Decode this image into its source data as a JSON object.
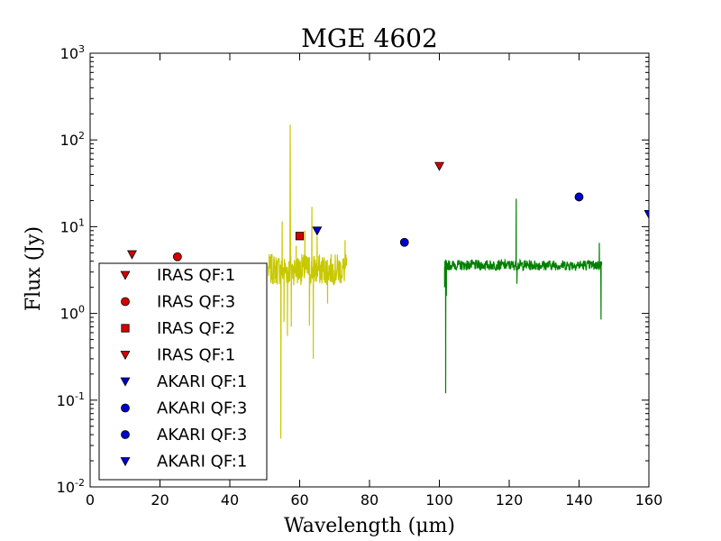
{
  "chart_data": {
    "type": "scatter",
    "title": "MGE 4602",
    "xlabel": "Wavelength (μm)",
    "ylabel": "Flux (Jy)",
    "xlim": [
      0,
      160
    ],
    "ylim": [
      0.01,
      1000
    ],
    "yscale": "log",
    "x_ticks": [
      "0",
      "20",
      "40",
      "60",
      "80",
      "100",
      "120",
      "140",
      "160"
    ],
    "y_ticks": [
      {
        "base": "10",
        "exp": "-2",
        "value": 0.01
      },
      {
        "base": "10",
        "exp": "-1",
        "value": 0.1
      },
      {
        "base": "10",
        "exp": "0",
        "value": 1
      },
      {
        "base": "10",
        "exp": "1",
        "value": 10
      },
      {
        "base": "10",
        "exp": "2",
        "value": 100
      },
      {
        "base": "10",
        "exp": "3",
        "value": 1000
      }
    ],
    "legend_position": "lower-left",
    "points": [
      {
        "label": "IRAS QF:1",
        "x": 12,
        "y": 4.8,
        "marker": "triangle-down",
        "color": "#d40000"
      },
      {
        "label": "IRAS QF:3",
        "x": 25,
        "y": 4.5,
        "marker": "circle",
        "color": "#d40000"
      },
      {
        "label": "IRAS QF:2",
        "x": 60,
        "y": 7.8,
        "marker": "square",
        "color": "#d40000"
      },
      {
        "label": "IRAS QF:1",
        "x": 100,
        "y": 50,
        "marker": "triangle-down",
        "color": "#d40000"
      },
      {
        "label": "AKARI QF:1",
        "x": 65,
        "y": 9,
        "marker": "triangle-down",
        "color": "#0000cc"
      },
      {
        "label": "AKARI QF:3",
        "x": 90,
        "y": 6.6,
        "marker": "circle",
        "color": "#0000cc"
      },
      {
        "label": "AKARI QF:3",
        "x": 140,
        "y": 22,
        "marker": "circle",
        "color": "#0000cc"
      },
      {
        "label": "AKARI QF:1",
        "x": 160,
        "y": 14,
        "marker": "triangle-down",
        "color": "#0000cc"
      }
    ],
    "spectra": [
      {
        "name": "spectrum-yellow",
        "color": "#c8c800",
        "x_range": [
          51,
          73.5
        ],
        "base_flux": 3.2,
        "noise_dex": 0.18,
        "spikes": [
          {
            "x": 51.0,
            "y": 3.5
          },
          {
            "x": 54.6,
            "y": 0.036
          },
          {
            "x": 55.0,
            "y": 11.5
          },
          {
            "x": 55.5,
            "y": 0.8
          },
          {
            "x": 56.5,
            "y": 0.55
          },
          {
            "x": 57.3,
            "y": 150
          },
          {
            "x": 57.6,
            "y": 0.7
          },
          {
            "x": 59.0,
            "y": 6
          },
          {
            "x": 61.5,
            "y": 9
          },
          {
            "x": 62.8,
            "y": 0.72
          },
          {
            "x": 63.5,
            "y": 17
          },
          {
            "x": 63.9,
            "y": 0.3
          },
          {
            "x": 65.0,
            "y": 7.8
          },
          {
            "x": 68.0,
            "y": 1.3
          },
          {
            "x": 73.0,
            "y": 7
          }
        ]
      },
      {
        "name": "spectrum-green",
        "color": "#008000",
        "x_range": [
          101.5,
          146.5
        ],
        "base_flux": 3.6,
        "noise_dex": 0.06,
        "spikes": [
          {
            "x": 101.5,
            "y": 2.0
          },
          {
            "x": 101.8,
            "y": 0.12
          },
          {
            "x": 102.0,
            "y": 1.6
          },
          {
            "x": 122.0,
            "y": 21
          },
          {
            "x": 122.2,
            "y": 2.2
          },
          {
            "x": 145.8,
            "y": 6.5
          },
          {
            "x": 146.3,
            "y": 0.85
          }
        ]
      }
    ],
    "legend": [
      {
        "label": "IRAS QF:1",
        "marker": "triangle-down",
        "color": "#d40000"
      },
      {
        "label": "IRAS QF:3",
        "marker": "circle",
        "color": "#d40000"
      },
      {
        "label": "IRAS QF:2",
        "marker": "square",
        "color": "#d40000"
      },
      {
        "label": "IRAS QF:1",
        "marker": "triangle-down",
        "color": "#d40000"
      },
      {
        "label": "AKARI QF:1",
        "marker": "triangle-down",
        "color": "#0000cc"
      },
      {
        "label": "AKARI QF:3",
        "marker": "circle",
        "color": "#0000cc"
      },
      {
        "label": "AKARI QF:3",
        "marker": "circle",
        "color": "#0000cc"
      },
      {
        "label": "AKARI QF:1",
        "marker": "triangle-down",
        "color": "#0000cc"
      }
    ]
  }
}
